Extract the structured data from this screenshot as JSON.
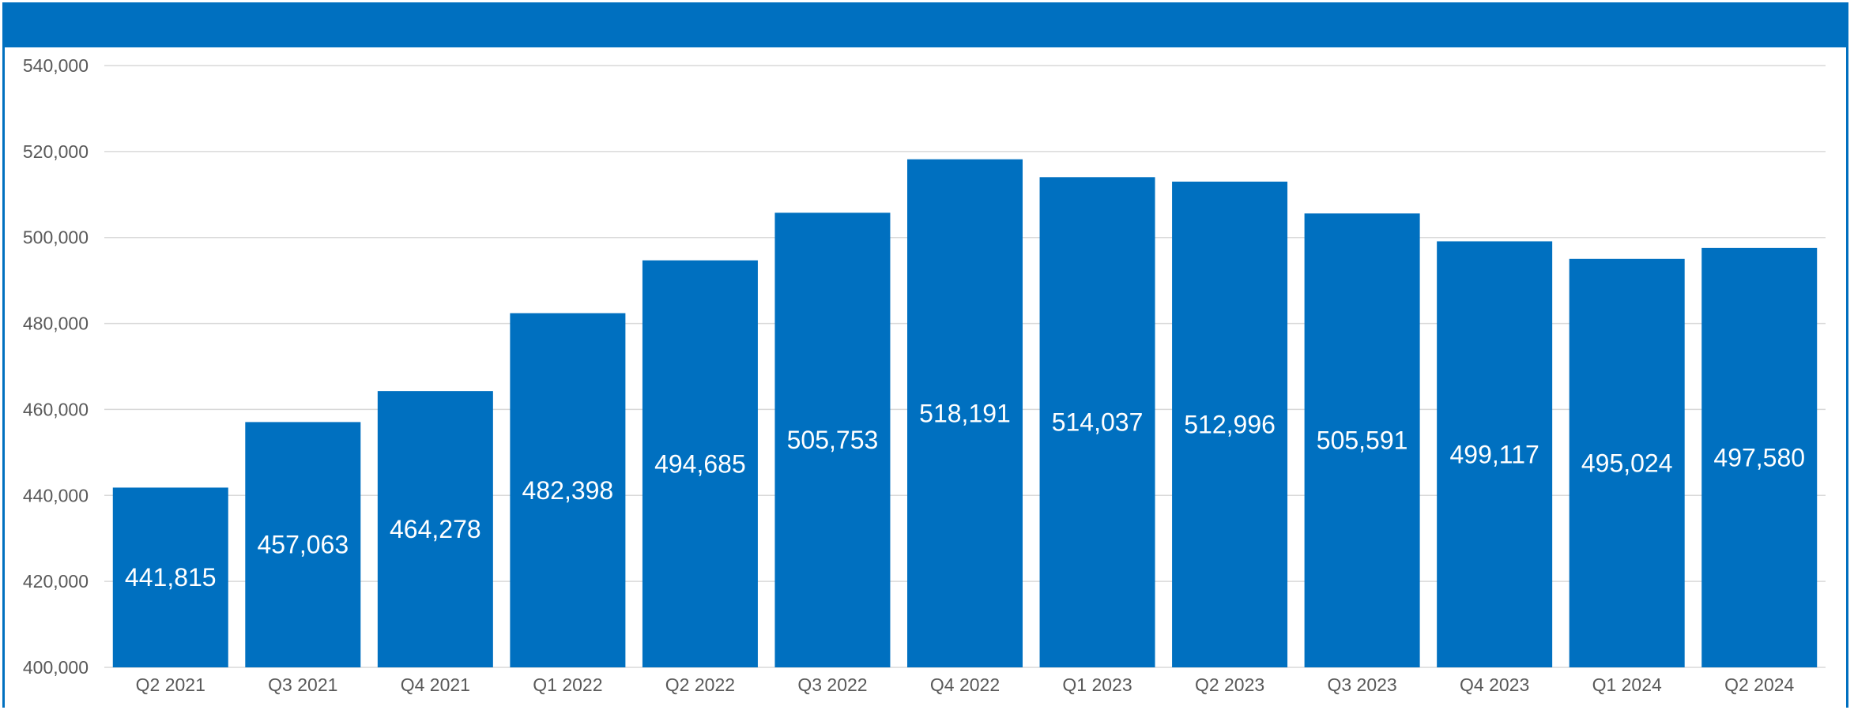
{
  "colors": {
    "accent": "#0070c0",
    "grid": "#d9d9d9",
    "tick_text": "#595959",
    "label_text": "#ffffff"
  },
  "chart_data": {
    "type": "bar",
    "title": "",
    "xlabel": "",
    "ylabel": "",
    "categories": [
      "Q2 2021",
      "Q3 2021",
      "Q4 2021",
      "Q1 2022",
      "Q2 2022",
      "Q3 2022",
      "Q4 2022",
      "Q1 2023",
      "Q2 2023",
      "Q3 2023",
      "Q4 2023",
      "Q1 2024",
      "Q2 2024"
    ],
    "values": [
      441815,
      457063,
      464278,
      482398,
      494685,
      505753,
      518191,
      514037,
      512996,
      505591,
      499117,
      495024,
      497580
    ],
    "data_labels": [
      "441,815",
      "457,063",
      "464,278",
      "482,398",
      "494,685",
      "505,753",
      "518,191",
      "514,037",
      "512,996",
      "505,591",
      "499,117",
      "495,024",
      "497,580"
    ],
    "ylim": [
      400000,
      540000
    ],
    "yticks": [
      400000,
      420000,
      440000,
      460000,
      480000,
      500000,
      520000,
      540000
    ],
    "ytick_labels": [
      "400,000",
      "420,000",
      "440,000",
      "460,000",
      "480,000",
      "500,000",
      "520,000",
      "540,000"
    ],
    "grid": true,
    "legend": "none"
  }
}
